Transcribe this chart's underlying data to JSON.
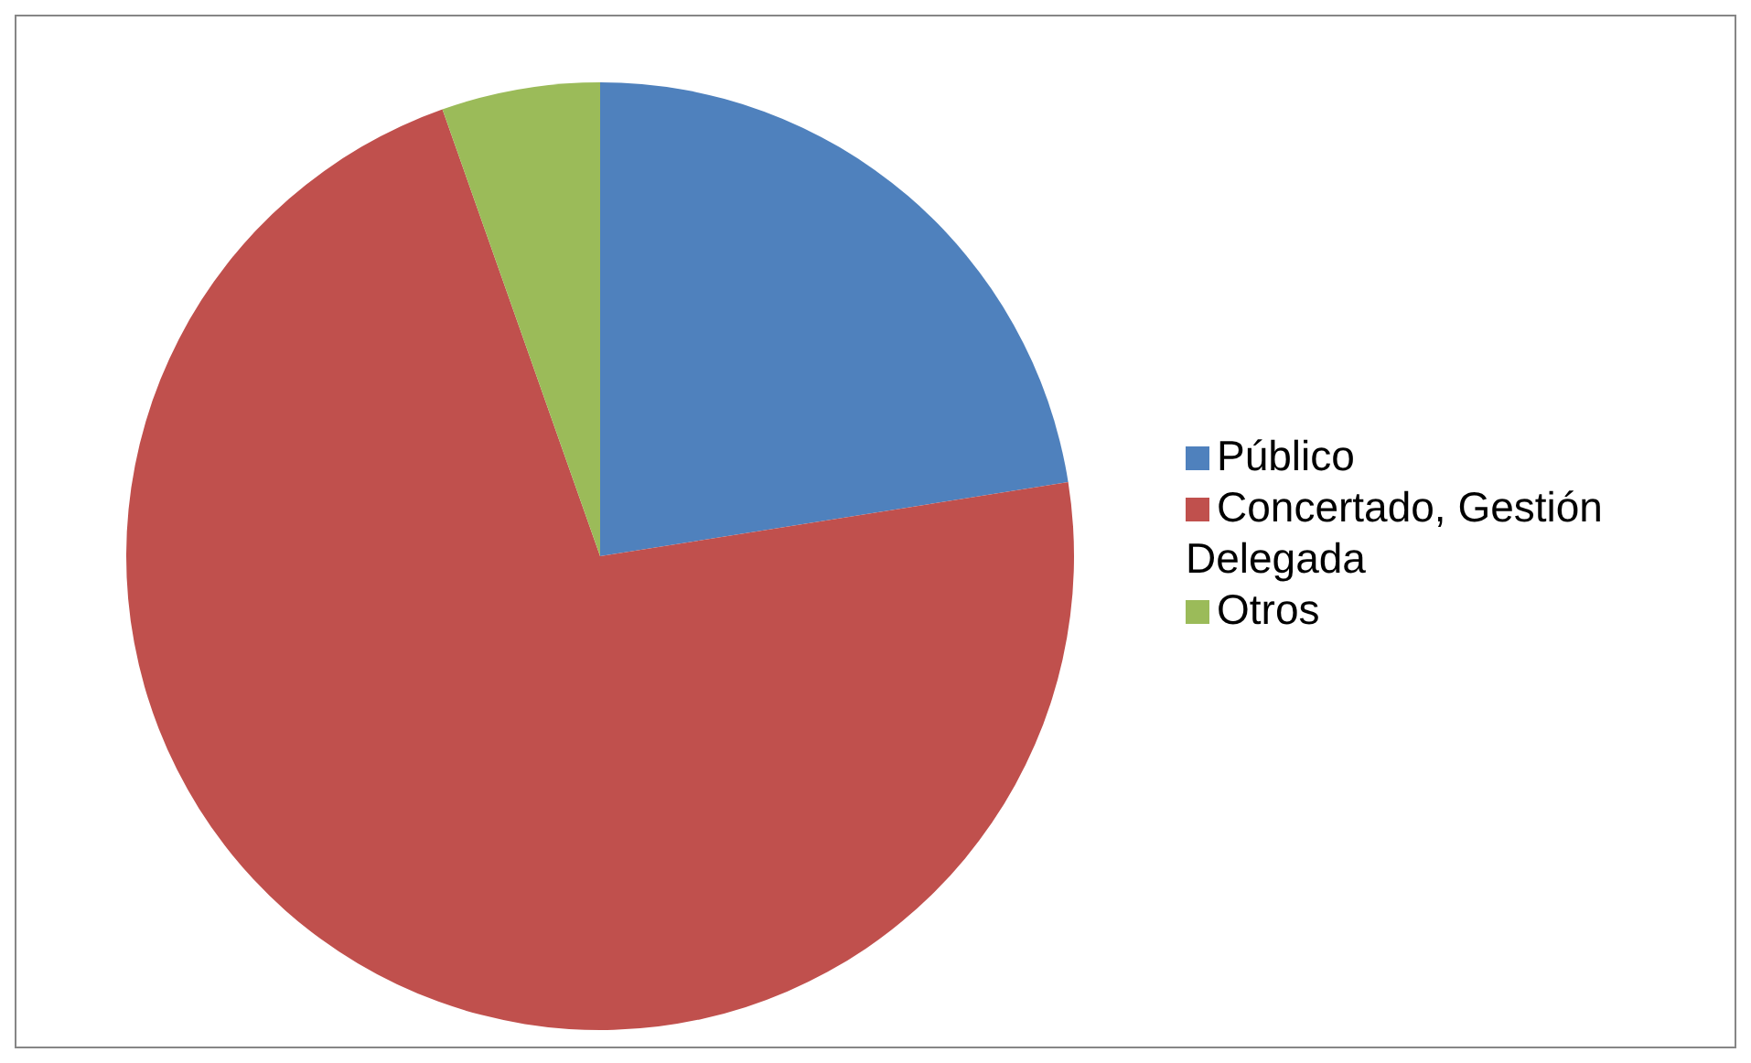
{
  "chart_data": {
    "type": "pie",
    "categories": [
      "Público",
      "Concertado, Gestión Delegada",
      "Otros"
    ],
    "values": [
      22.5,
      72.1,
      5.4
    ],
    "colors": [
      "#4f81bd",
      "#c0504d",
      "#9bbb59"
    ],
    "legend": "right"
  }
}
